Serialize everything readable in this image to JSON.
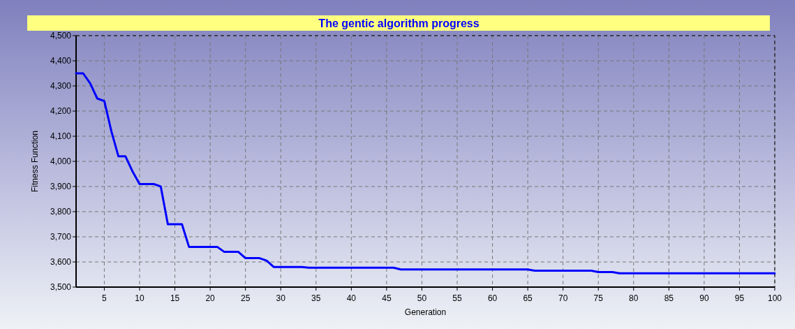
{
  "chart_data": {
    "type": "line",
    "title": "The gentic algorithm progress",
    "xlabel": "Generation",
    "ylabel": "Fitness Function",
    "x": [
      1,
      2,
      3,
      4,
      5,
      6,
      7,
      8,
      9,
      10,
      11,
      12,
      13,
      14,
      15,
      16,
      17,
      18,
      19,
      20,
      21,
      22,
      23,
      24,
      25,
      26,
      27,
      28,
      29,
      30,
      33,
      34,
      46,
      47,
      65,
      66,
      74,
      75,
      77,
      78,
      100
    ],
    "series": [
      {
        "color": "#0000ff",
        "values": [
          4350,
          4350,
          4310,
          4250,
          4240,
          4120,
          4020,
          4020,
          3960,
          3910,
          3910,
          3910,
          3900,
          3750,
          3750,
          3750,
          3660,
          3660,
          3660,
          3660,
          3660,
          3640,
          3640,
          3640,
          3615,
          3615,
          3615,
          3605,
          3580,
          3580,
          3580,
          3577,
          3577,
          3570,
          3570,
          3565,
          3565,
          3560,
          3560,
          3555,
          3555
        ]
      }
    ],
    "xlim": [
      1,
      100
    ],
    "xticks": [
      5,
      10,
      15,
      20,
      25,
      30,
      35,
      40,
      45,
      50,
      55,
      60,
      65,
      70,
      75,
      80,
      85,
      90,
      95,
      100
    ],
    "ylim": [
      3500,
      4500
    ],
    "yticks": [
      {
        "value": 3500,
        "label": "3,500"
      },
      {
        "value": 3600,
        "label": "3,600"
      },
      {
        "value": 3700,
        "label": "3,700"
      },
      {
        "value": 3800,
        "label": "3,800"
      },
      {
        "value": 3900,
        "label": "3,900"
      },
      {
        "value": 4000,
        "label": "4,000"
      },
      {
        "value": 4100,
        "label": "4,100"
      },
      {
        "value": 4200,
        "label": "4,200"
      },
      {
        "value": 4300,
        "label": "4,300"
      },
      {
        "value": 4400,
        "label": "4,400"
      },
      {
        "value": 4500,
        "label": "4,500"
      }
    ],
    "grid": true,
    "line_style": "solid",
    "marker": "none"
  }
}
